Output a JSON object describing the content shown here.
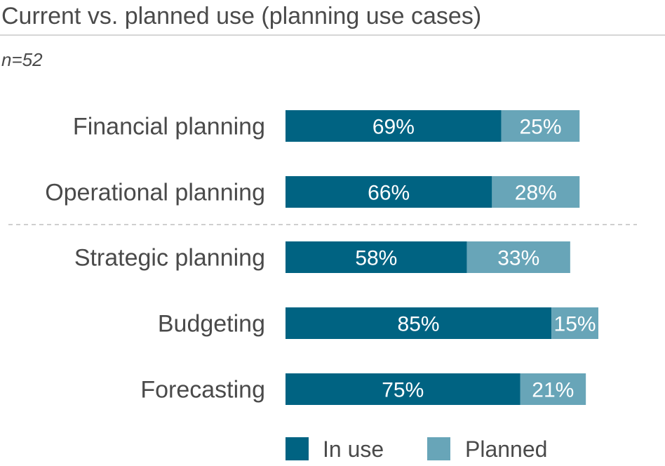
{
  "colors": {
    "in_use": "#006382",
    "planned": "#68a5b8"
  },
  "chart_data": {
    "type": "bar",
    "orientation": "horizontal",
    "stacked": true,
    "title": "Current vs. planned use (planning use cases)",
    "subtitle": "n=52",
    "categories": [
      "Financial planning",
      "Operational planning",
      "Strategic planning",
      "Budgeting",
      "Forecasting"
    ],
    "series": [
      {
        "name": "In use",
        "values": [
          69,
          66,
          58,
          85,
          75
        ]
      },
      {
        "name": "Planned",
        "values": [
          25,
          28,
          33,
          15,
          21
        ]
      }
    ],
    "value_labels": {
      "In use": [
        "69%",
        "66%",
        "58%",
        "85%",
        "75%"
      ],
      "Planned": [
        "25%",
        "28%",
        "33%",
        "15%",
        "21%"
      ]
    },
    "xlim": [
      0,
      100
    ],
    "grid": false,
    "legend_position": "bottom"
  }
}
